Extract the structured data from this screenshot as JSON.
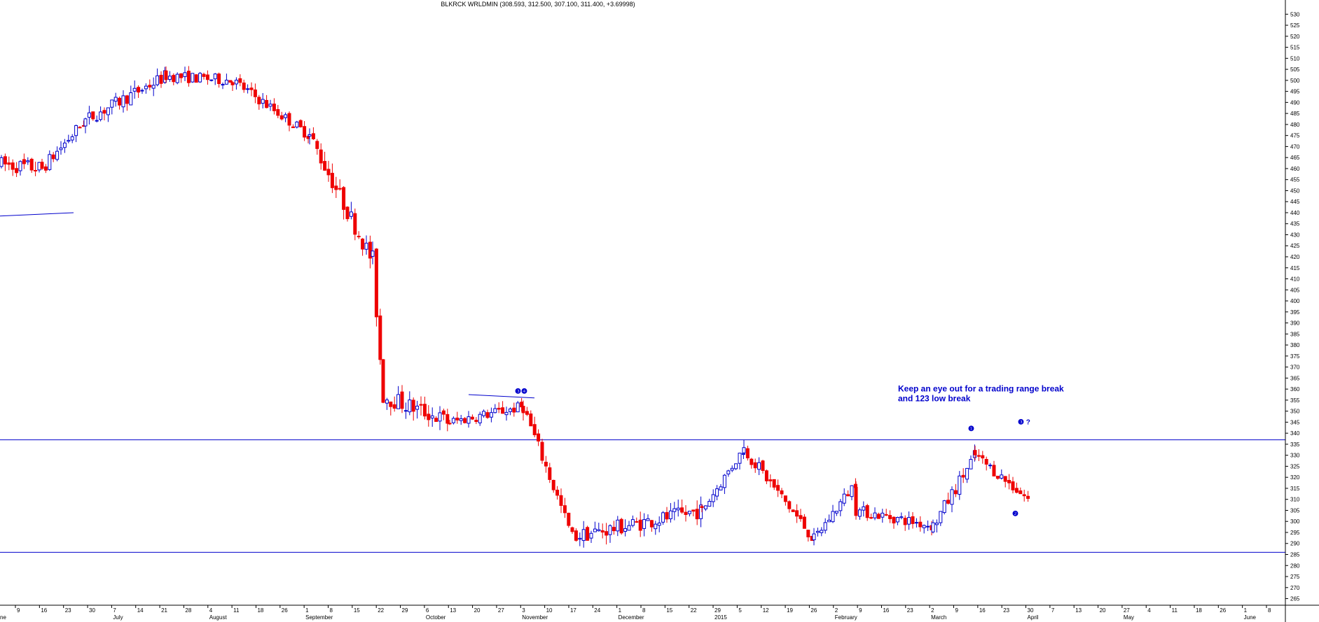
{
  "chart_data": {
    "type": "candlestick",
    "title": "BLKRCK WRLDMIN (308.593, 312.500, 307.100, 311.400, +3.69998)",
    "ylim": [
      262,
      532
    ],
    "yticks": [
      265,
      270,
      275,
      280,
      285,
      290,
      295,
      300,
      305,
      310,
      315,
      320,
      325,
      330,
      335,
      340,
      345,
      350,
      355,
      360,
      365,
      370,
      375,
      380,
      385,
      390,
      395,
      400,
      405,
      410,
      415,
      420,
      425,
      430,
      435,
      440,
      445,
      450,
      455,
      460,
      465,
      470,
      475,
      480,
      485,
      490,
      495,
      500,
      505,
      510,
      515,
      520,
      525,
      530
    ],
    "x_day_labels": [
      "9",
      "16",
      "23",
      "30",
      "7",
      "14",
      "21",
      "28",
      "4",
      "11",
      "18",
      "26",
      "1",
      "8",
      "15",
      "22",
      "29",
      "6",
      "13",
      "20",
      "27",
      "3",
      "10",
      "17",
      "24",
      "1",
      "8",
      "15",
      "22",
      "29",
      "5",
      "12",
      "19",
      "26",
      "2",
      "9",
      "16",
      "23",
      "2",
      "9",
      "16",
      "23",
      "30",
      "7",
      "13",
      "20",
      "27",
      "4",
      "11",
      "18",
      "26",
      "1",
      "8"
    ],
    "x_month_labels": [
      "ne",
      "July",
      "August",
      "September",
      "October",
      "November",
      "December",
      "2015",
      "February",
      "March",
      "April",
      "May",
      "June"
    ],
    "horizontal_lines": [
      337,
      286
    ],
    "trendline_start": [
      0,
      438.5
    ],
    "trendline_end": [
      105,
      440
    ],
    "range_line_nov": [
      [
        669,
        357.5
      ],
      [
        763,
        356
      ]
    ],
    "segments": [
      {
        "from": 0,
        "to": 58,
        "p0": 462,
        "p1": 460,
        "noise": 7
      },
      {
        "from": 58,
        "to": 120,
        "p0": 460,
        "p1": 482,
        "noise": 6
      },
      {
        "from": 120,
        "to": 235,
        "p0": 482,
        "p1": 502,
        "noise": 6
      },
      {
        "from": 235,
        "to": 330,
        "p0": 502,
        "p1": 500,
        "noise": 5
      },
      {
        "from": 330,
        "to": 440,
        "p0": 500,
        "p1": 475,
        "noise": 5
      },
      {
        "from": 440,
        "to": 530,
        "p0": 475,
        "p1": 418,
        "noise": 8
      },
      {
        "from": 530,
        "to": 545,
        "p0": 418,
        "p1": 357,
        "noise": 10
      },
      {
        "from": 545,
        "to": 640,
        "p0": 357,
        "p1": 345,
        "noise": 8
      },
      {
        "from": 640,
        "to": 745,
        "p0": 345,
        "p1": 352,
        "noise": 5
      },
      {
        "from": 745,
        "to": 815,
        "p0": 352,
        "p1": 293,
        "noise": 6
      },
      {
        "from": 815,
        "to": 1000,
        "p0": 293,
        "p1": 305,
        "noise": 7
      },
      {
        "from": 1000,
        "to": 1060,
        "p0": 305,
        "p1": 333,
        "noise": 5
      },
      {
        "from": 1060,
        "to": 1160,
        "p0": 333,
        "p1": 292,
        "noise": 6
      },
      {
        "from": 1160,
        "to": 1220,
        "p0": 292,
        "p1": 318,
        "noise": 5
      },
      {
        "from": 1220,
        "to": 1330,
        "p0": 305,
        "p1": 298,
        "noise": 5
      },
      {
        "from": 1330,
        "to": 1390,
        "p0": 298,
        "p1": 330,
        "noise": 6
      },
      {
        "from": 1390,
        "to": 1470,
        "p0": 330,
        "p1": 309,
        "noise": 5
      }
    ],
    "annotations": [
      {
        "text": "Keep an eye out for a trading range break",
        "x": 1282,
        "y": 359
      },
      {
        "text": "and 123 low break",
        "x": 1282,
        "y": 354.5
      }
    ],
    "wave_labels": [
      {
        "text": "❶",
        "x": 1382,
        "y": 341
      },
      {
        "text": "❷",
        "x": 1445,
        "y": 302.5
      },
      {
        "text": "❸ ?",
        "x": 1453,
        "y": 344
      },
      {
        "text": "❸❹",
        "x": 735,
        "y": 358
      }
    ]
  }
}
